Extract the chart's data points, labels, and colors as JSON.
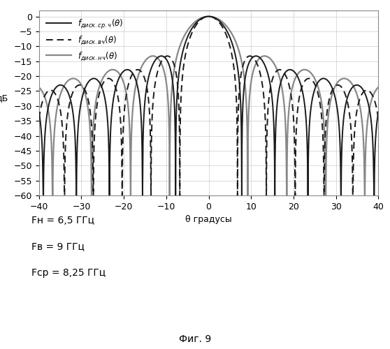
{
  "title": "",
  "xlabel": "θ градусы",
  "ylabel": "дБ",
  "xlim": [
    -40,
    40
  ],
  "ylim": [
    -60,
    2
  ],
  "xticks": [
    -40,
    -30,
    -20,
    -10,
    0,
    10,
    20,
    30,
    40
  ],
  "yticks": [
    0,
    -5,
    -10,
    -15,
    -20,
    -25,
    -30,
    -35,
    -40,
    -45,
    -50,
    -55,
    -60
  ],
  "F_n": 6.5,
  "F_v": 9.0,
  "F_sr": 8.25,
  "line_color_mid": "#1a1a1a",
  "line_color_high": "#1a1a1a",
  "line_color_low": "#888888",
  "fig_label": "Фиг. 9",
  "background_color": "#ffffff",
  "theta_scale_mid": 7.8,
  "theta_scale_high": 6.8,
  "theta_scale_low": 9.2,
  "sidelobe_decay_mid": 1.0,
  "sidelobe_decay_high": 1.0,
  "sidelobe_decay_low": 1.0
}
